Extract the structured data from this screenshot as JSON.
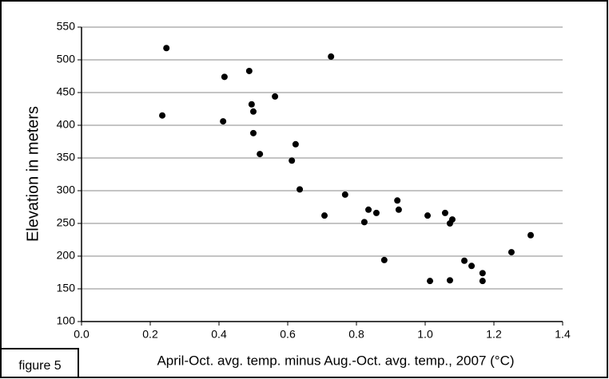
{
  "chart_data": {
    "type": "scatter",
    "ylabel": "Elevation in meters",
    "xlabel": "April-Oct. avg. temp. minus  Aug.-Oct. avg. temp., 2007  (°C)",
    "figure_label": "figure 5",
    "color": "#000000",
    "grid": true,
    "xlim": [
      0,
      1.4
    ],
    "ylim": [
      100,
      550
    ],
    "xticks": [
      {
        "value": 0,
        "label": "0.0"
      },
      0.2,
      0.4,
      0.6,
      0.8,
      {
        "value": 1,
        "label": "1.0"
      },
      1.2,
      1.4
    ],
    "yticks": [
      100,
      150,
      200,
      250,
      300,
      350,
      400,
      450,
      500,
      550
    ],
    "x": [
      0.247,
      0.235,
      0.416,
      0.488,
      0.412,
      0.495,
      0.5,
      0.563,
      0.5,
      0.519,
      0.623,
      0.612,
      0.635,
      0.726,
      0.707,
      0.767,
      0.835,
      0.823,
      0.858,
      0.881,
      0.919,
      0.923,
      1.007,
      1.014,
      1.058,
      1.079,
      1.072,
      1.072,
      1.114,
      1.135,
      1.167,
      1.167,
      1.251,
      1.307
    ],
    "values": [
      518,
      415,
      474,
      483,
      406,
      432,
      421,
      444,
      388,
      356,
      371,
      346,
      302,
      505,
      262,
      294,
      271,
      252,
      266,
      194,
      285,
      271,
      262,
      162,
      266,
      256,
      250,
      163,
      193,
      185,
      174,
      162,
      206,
      232
    ]
  }
}
